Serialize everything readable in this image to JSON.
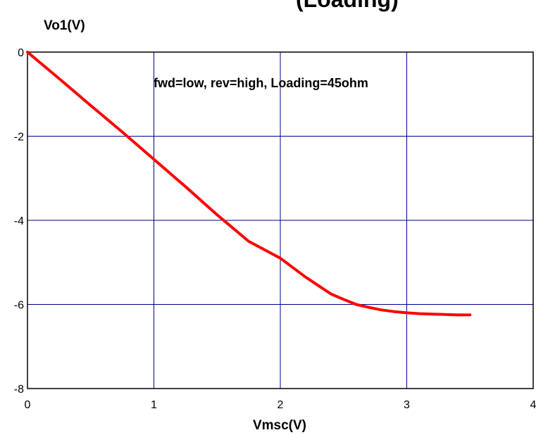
{
  "chart_data": {
    "type": "line",
    "title_fragment": "(Loading)",
    "xlabel": "Vmsc(V)",
    "ylabel": "Vo1(V)",
    "annotation": "fwd=low, rev=high, Loading=45ohm",
    "xlim": [
      0,
      4
    ],
    "ylim": [
      -8,
      0
    ],
    "x_ticks": [
      "0",
      "1",
      "2",
      "3",
      "4"
    ],
    "y_ticks": [
      "0",
      "-2",
      "-4",
      "-6",
      "-8"
    ],
    "grid": true,
    "series": [
      {
        "color": "#ff0000",
        "x": [
          0,
          0.25,
          0.5,
          0.75,
          1.0,
          1.25,
          1.5,
          1.75,
          2.0,
          2.2,
          2.4,
          2.5,
          2.6,
          2.7,
          2.8,
          2.9,
          3.0,
          3.1,
          3.2,
          3.3,
          3.4,
          3.5
        ],
        "y": [
          0,
          -0.63,
          -1.27,
          -1.9,
          -2.55,
          -3.2,
          -3.87,
          -4.5,
          -4.9,
          -5.35,
          -5.75,
          -5.88,
          -6.0,
          -6.07,
          -6.13,
          -6.17,
          -6.2,
          -6.22,
          -6.23,
          -6.24,
          -6.25,
          -6.25
        ]
      }
    ]
  },
  "colors": {
    "grid": "#00008b",
    "line": "#ff0000",
    "frame": "#000000"
  }
}
